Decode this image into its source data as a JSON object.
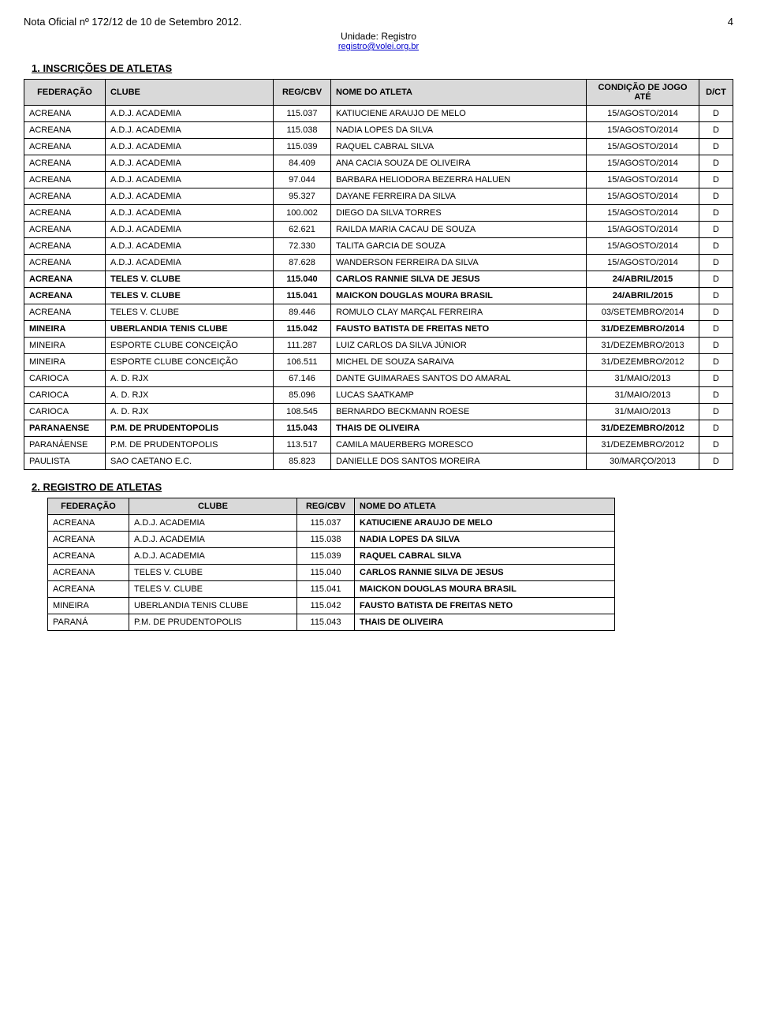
{
  "header": {
    "title": "Nota Oficial nº 172/12 de 10 de Setembro 2012.",
    "page": "4",
    "unit": "Unidade: Registro",
    "email": "registro@volei.org.br"
  },
  "section1": {
    "title": "1.    INSCRIÇÕES DE ATLETAS",
    "columns": [
      "FEDERAÇÃO",
      "CLUBE",
      "REG/CBV",
      "NOME DO ATLETA",
      "CONDIÇÃO DE JOGO ATÉ",
      "D/CT"
    ],
    "rows": [
      {
        "f": "ACREANA",
        "c": "A.D.J. ACADEMIA",
        "r": "115.037",
        "n": "KATIUCIENE ARAUJO DE MELO",
        "d": "15/AGOSTO/2014",
        "t": "D",
        "bold": false
      },
      {
        "f": "ACREANA",
        "c": "A.D.J. ACADEMIA",
        "r": "115.038",
        "n": "NADIA LOPES DA SILVA",
        "d": "15/AGOSTO/2014",
        "t": "D",
        "bold": false
      },
      {
        "f": "ACREANA",
        "c": "A.D.J. ACADEMIA",
        "r": "115.039",
        "n": "RAQUEL CABRAL SILVA",
        "d": "15/AGOSTO/2014",
        "t": "D",
        "bold": false
      },
      {
        "f": "ACREANA",
        "c": "A.D.J. ACADEMIA",
        "r": "84.409",
        "n": "ANA CACIA SOUZA DE OLIVEIRA",
        "d": "15/AGOSTO/2014",
        "t": "D",
        "bold": false
      },
      {
        "f": "ACREANA",
        "c": "A.D.J. ACADEMIA",
        "r": "97.044",
        "n": "BARBARA HELIODORA BEZERRA HALUEN",
        "d": "15/AGOSTO/2014",
        "t": "D",
        "bold": false
      },
      {
        "f": "ACREANA",
        "c": "A.D.J. ACADEMIA",
        "r": "95.327",
        "n": "DAYANE FERREIRA DA SILVA",
        "d": "15/AGOSTO/2014",
        "t": "D",
        "bold": false
      },
      {
        "f": "ACREANA",
        "c": "A.D.J. ACADEMIA",
        "r": "100.002",
        "n": "DIEGO DA SILVA TORRES",
        "d": "15/AGOSTO/2014",
        "t": "D",
        "bold": false
      },
      {
        "f": "ACREANA",
        "c": "A.D.J. ACADEMIA",
        "r": "62.621",
        "n": "RAILDA MARIA CACAU DE SOUZA",
        "d": "15/AGOSTO/2014",
        "t": "D",
        "bold": false
      },
      {
        "f": "ACREANA",
        "c": "A.D.J. ACADEMIA",
        "r": "72.330",
        "n": "TALITA GARCIA DE SOUZA",
        "d": "15/AGOSTO/2014",
        "t": "D",
        "bold": false
      },
      {
        "f": "ACREANA",
        "c": "A.D.J. ACADEMIA",
        "r": "87.628",
        "n": "WANDERSON FERREIRA DA SILVA",
        "d": "15/AGOSTO/2014",
        "t": "D",
        "bold": false
      },
      {
        "f": "ACREANA",
        "c": "TELES V. CLUBE",
        "r": "115.040",
        "n": "CARLOS RANNIE SILVA DE JESUS",
        "d": "24/ABRIL/2015",
        "t": "D",
        "bold": true
      },
      {
        "f": "ACREANA",
        "c": "TELES V. CLUBE",
        "r": "115.041",
        "n": "MAICKON DOUGLAS MOURA BRASIL",
        "d": "24/ABRIL/2015",
        "t": "D",
        "bold": true
      },
      {
        "f": "ACREANA",
        "c": "TELES V. CLUBE",
        "r": "89.446",
        "n": "ROMULO CLAY MARÇAL FERREIRA",
        "d": "03/SETEMBRO/2014",
        "t": "D",
        "bold": false
      },
      {
        "f": "MINEIRA",
        "c": "UBERLANDIA TENIS CLUBE",
        "r": "115.042",
        "n": "FAUSTO BATISTA DE FREITAS NETO",
        "d": "31/DEZEMBRO/2014",
        "t": "D",
        "bold": true
      },
      {
        "f": "MINEIRA",
        "c": "ESPORTE CLUBE CONCEIÇÃO",
        "r": "111.287",
        "n": "LUIZ CARLOS DA SILVA JÚNIOR",
        "d": "31/DEZEMBRO/2013",
        "t": "D",
        "bold": false
      },
      {
        "f": "MINEIRA",
        "c": "ESPORTE CLUBE CONCEIÇÃO",
        "r": "106.511",
        "n": "MICHEL DE SOUZA SARAIVA",
        "d": "31/DEZEMBRO/2012",
        "t": "D",
        "bold": false
      },
      {
        "f": "CARIOCA",
        "c": "A. D. RJX",
        "r": "67.146",
        "n": "DANTE GUIMARAES SANTOS DO AMARAL",
        "d": "31/MAIO/2013",
        "t": "D",
        "bold": false
      },
      {
        "f": "CARIOCA",
        "c": "A. D. RJX",
        "r": "85.096",
        "n": "LUCAS SAATKAMP",
        "d": "31/MAIO/2013",
        "t": "D",
        "bold": false
      },
      {
        "f": "CARIOCA",
        "c": "A. D. RJX",
        "r": "108.545",
        "n": "BERNARDO BECKMANN ROESE",
        "d": "31/MAIO/2013",
        "t": "D",
        "bold": false
      },
      {
        "f": "PARANAENSE",
        "c": "P.M. DE PRUDENTOPOLIS",
        "r": "115.043",
        "n": "THAIS DE OLIVEIRA",
        "d": "31/DEZEMBRO/2012",
        "t": "D",
        "bold": true
      },
      {
        "f": "PARANÁENSE",
        "c": "P.M. DE PRUDENTOPOLIS",
        "r": "113.517",
        "n": "CAMILA MAUERBERG MORESCO",
        "d": "31/DEZEMBRO/2012",
        "t": "D",
        "bold": false
      },
      {
        "f": "PAULISTA",
        "c": "SAO CAETANO E.C.",
        "r": "85.823",
        "n": "DANIELLE DOS SANTOS MOREIRA",
        "d": "30/MARÇO/2013",
        "t": "D",
        "bold": false
      }
    ]
  },
  "section2": {
    "title": "2.    REGISTRO DE ATLETAS",
    "columns": [
      "FEDERAÇÃO",
      "CLUBE",
      "REG/CBV",
      "NOME DO ATLETA"
    ],
    "rows": [
      {
        "f": "ACREANA",
        "c": "A.D.J. ACADEMIA",
        "r": "115.037",
        "n": "KATIUCIENE ARAUJO DE MELO"
      },
      {
        "f": "ACREANA",
        "c": "A.D.J. ACADEMIA",
        "r": "115.038",
        "n": "NADIA LOPES DA SILVA"
      },
      {
        "f": "ACREANA",
        "c": "A.D.J. ACADEMIA",
        "r": "115.039",
        "n": "RAQUEL CABRAL SILVA"
      },
      {
        "f": "ACREANA",
        "c": "TELES V. CLUBE",
        "r": "115.040",
        "n": "CARLOS RANNIE SILVA DE JESUS"
      },
      {
        "f": "ACREANA",
        "c": "TELES V. CLUBE",
        "r": "115.041",
        "n": "MAICKON DOUGLAS MOURA BRASIL"
      },
      {
        "f": "MINEIRA",
        "c": "UBERLANDIA TENIS CLUBE",
        "r": "115.042",
        "n": "FAUSTO BATISTA DE FREITAS NETO"
      },
      {
        "f": "PARANÁ",
        "c": "P.M. DE PRUDENTOPOLIS",
        "r": "115.043",
        "n": "THAIS DE OLIVEIRA"
      }
    ]
  }
}
